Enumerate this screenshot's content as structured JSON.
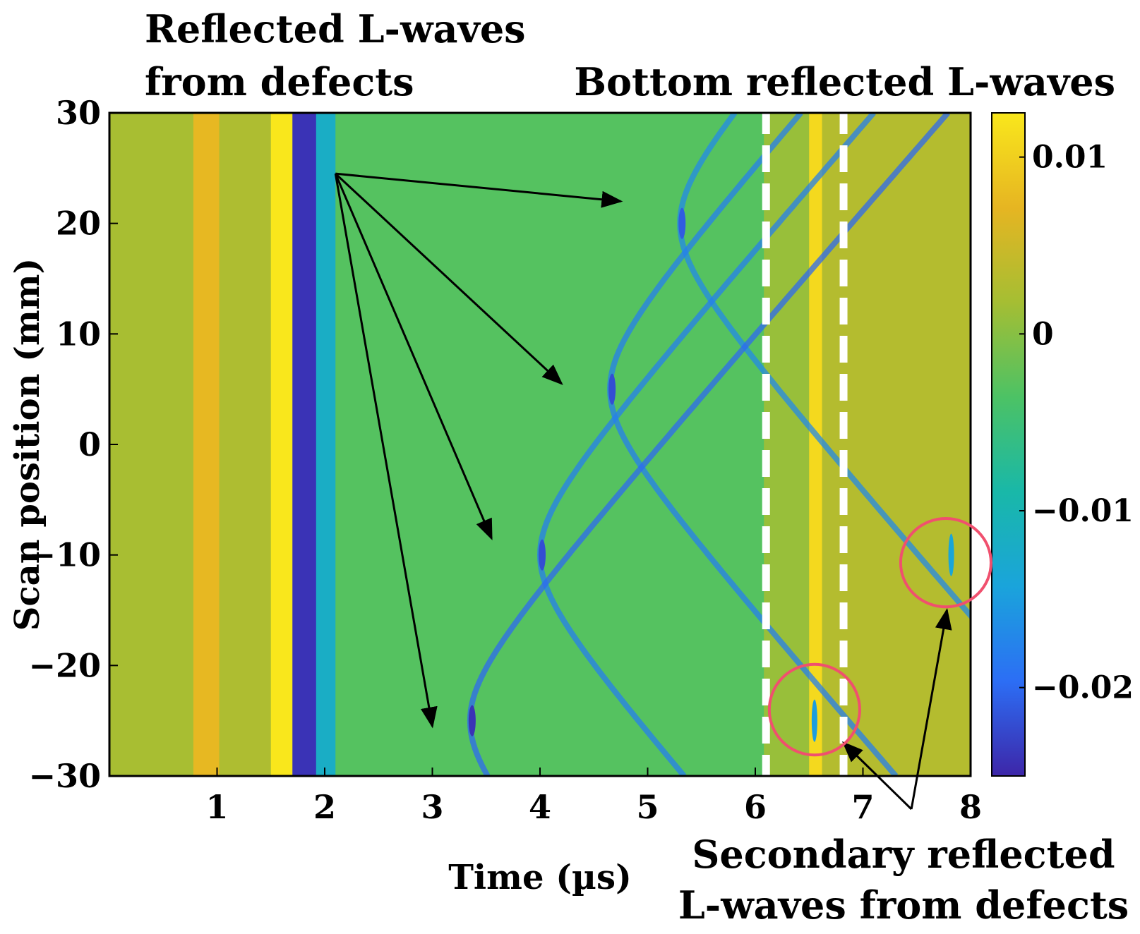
{
  "chart_data": {
    "type": "heatmap",
    "title": "",
    "xlabel": "Time (µs)",
    "ylabel": "Scan position (mm)",
    "xlim": [
      0,
      8
    ],
    "ylim": [
      -30,
      30
    ],
    "x_ticks": [
      1,
      2,
      3,
      4,
      5,
      6,
      7,
      8
    ],
    "y_ticks": [
      30,
      20,
      10,
      0,
      -10,
      -20,
      -30
    ],
    "y_tick_labels": [
      "30",
      "20",
      "10",
      "0",
      "−10",
      "−20",
      "−30"
    ],
    "colorbar": {
      "range": [
        -0.025,
        0.0125
      ],
      "ticks": [
        0.01,
        0,
        -0.01,
        -0.02
      ],
      "tick_labels": [
        "0.01",
        "0",
        "−0.01",
        "−0.02"
      ],
      "colormap": [
        "#3d26a8",
        "#2c6ef5",
        "#1aa4db",
        "#19b8a8",
        "#4cc265",
        "#a5be33",
        "#e6b522",
        "#f9e71c"
      ]
    },
    "bands": [
      {
        "t_start": 0.0,
        "t_end": 0.78,
        "value": 0.002
      },
      {
        "t_start": 0.78,
        "t_end": 1.02,
        "value": 0.0075
      },
      {
        "t_start": 1.02,
        "t_end": 1.5,
        "value": 0.0025
      },
      {
        "t_start": 1.5,
        "t_end": 1.7,
        "value": 0.0125
      },
      {
        "t_start": 1.7,
        "t_end": 1.92,
        "value": -0.024
      },
      {
        "t_start": 1.92,
        "t_end": 2.1,
        "value": -0.012
      },
      {
        "t_start": 2.1,
        "t_end": 6.08,
        "value": -0.003
      },
      {
        "t_start": 6.08,
        "t_end": 6.5,
        "value": 0.001
      },
      {
        "t_start": 6.5,
        "t_end": 6.62,
        "value": 0.011
      },
      {
        "t_start": 6.62,
        "t_end": 8.0,
        "value": 0.003
      }
    ],
    "defect_echoes": [
      {
        "apex_time": 5.3,
        "scan_position": 20,
        "value": -0.017
      },
      {
        "apex_time": 4.65,
        "scan_position": 5,
        "value": -0.018
      },
      {
        "apex_time": 4.0,
        "scan_position": -10,
        "value": -0.018
      },
      {
        "apex_time": 3.35,
        "scan_position": -25,
        "value": -0.02
      }
    ],
    "secondary_echoes": [
      {
        "apex_time": 6.55,
        "scan_position": -25,
        "value": -0.015
      },
      {
        "apex_time": 7.82,
        "scan_position": -10,
        "value": -0.014
      }
    ],
    "bottom_reflection_window": [
      6.1,
      6.82
    ],
    "annotations": {
      "reflected_defects": [
        "Reflected L-waves",
        "from defects"
      ],
      "bottom_reflected": "Bottom reflected L-waves",
      "secondary_reflected": [
        "Secondary reflected",
        "L-waves from defects"
      ]
    },
    "arrows": {
      "defect_origin": {
        "time": 2.1,
        "scan_position": 24.5
      },
      "defect_targets": [
        {
          "time": 4.75,
          "scan_position": 22
        },
        {
          "time": 4.2,
          "scan_position": 5.5
        },
        {
          "time": 3.55,
          "scan_position": -8.5
        },
        {
          "time": 3.0,
          "scan_position": -25.5
        }
      ],
      "secondary_origin": {
        "time": 7.45,
        "scan_position": -33
      },
      "secondary_targets": [
        {
          "time": 6.82,
          "scan_position": -27
        },
        {
          "time": 7.78,
          "scan_position": -15
        }
      ]
    },
    "circles": [
      {
        "time": 6.55,
        "scan_position": -24,
        "r_time": 0.42,
        "r_scan": 4.1
      },
      {
        "time": 7.77,
        "scan_position": -10.7,
        "r_time": 0.42,
        "r_scan": 4.0
      }
    ]
  }
}
